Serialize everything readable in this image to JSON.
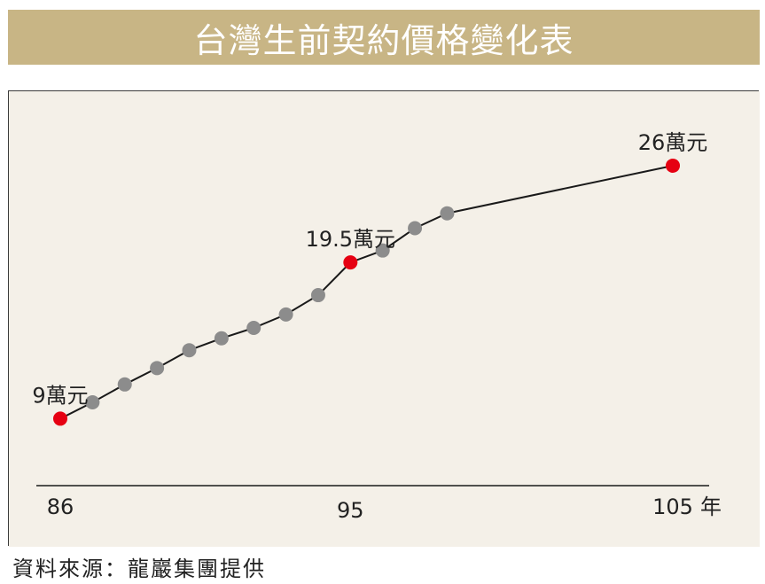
{
  "title": "台灣生前契約價格變化表",
  "source": "資料來源：龍巖集團提供",
  "colors": {
    "title_bar": "#c8b585",
    "panel_bg": "#f4f0e8",
    "line": "#1a1a1a",
    "point_default": "#8c8c8c",
    "point_highlight": "#e60012"
  },
  "chart_data": {
    "type": "line",
    "title": "台灣生前契約價格變化表",
    "xlabel": "年",
    "ylabel": "",
    "x": [
      86,
      87,
      88,
      89,
      90,
      91,
      92,
      93,
      94,
      95,
      96,
      97,
      98,
      99,
      100,
      101,
      102,
      103,
      104,
      105
    ],
    "x_tick_labels": [
      {
        "x": 86,
        "label": "86"
      },
      {
        "x": 95,
        "label": "95"
      },
      {
        "x": 105,
        "label": "105"
      }
    ],
    "series": [
      {
        "values": [
          9,
          10.1,
          11.3,
          12.4,
          13.6,
          14.4,
          15.1,
          16,
          17.3,
          19.5,
          20.3,
          21.8,
          22.8,
          23.7,
          24.6,
          25.5,
          26,
          25.3,
          25.7,
          26
        ]
      }
    ],
    "points_x": [
      86,
      87,
      88,
      89,
      90,
      91,
      92,
      93,
      94,
      95,
      96,
      97,
      98
    ],
    "points_y": [
      9,
      10.1,
      11.3,
      12.4,
      13.6,
      14.4,
      15.1,
      16,
      17.3,
      19.5,
      20.3,
      21.8,
      22.8
    ],
    "highlights": [
      {
        "x": 86,
        "y": 9,
        "label": "9萬元"
      },
      {
        "x": 95,
        "y": 19.5,
        "label": "19.5萬元"
      },
      {
        "x": 105,
        "y": 26,
        "label": "26萬元"
      }
    ],
    "xlim": [
      86,
      105
    ],
    "ylim": [
      4.5,
      31
    ],
    "grid": false,
    "legend": "none"
  }
}
